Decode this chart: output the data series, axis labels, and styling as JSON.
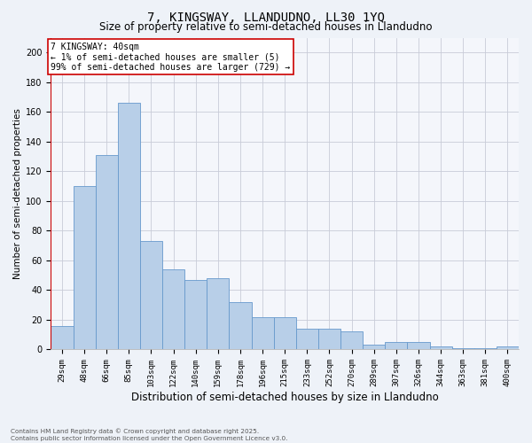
{
  "title": "7, KINGSWAY, LLANDUDNO, LL30 1YQ",
  "subtitle": "Size of property relative to semi-detached houses in Llandudno",
  "xlabel": "Distribution of semi-detached houses by size in Llandudno",
  "ylabel": "Number of semi-detached properties",
  "categories": [
    "29sqm",
    "48sqm",
    "66sqm",
    "85sqm",
    "103sqm",
    "122sqm",
    "140sqm",
    "159sqm",
    "178sqm",
    "196sqm",
    "215sqm",
    "233sqm",
    "252sqm",
    "270sqm",
    "289sqm",
    "307sqm",
    "326sqm",
    "344sqm",
    "363sqm",
    "381sqm",
    "400sqm"
  ],
  "values": [
    16,
    110,
    131,
    166,
    73,
    54,
    47,
    48,
    32,
    22,
    22,
    14,
    14,
    12,
    3,
    5,
    5,
    2,
    1,
    1,
    2
  ],
  "bar_color": "#b8cfe8",
  "bar_edge_color": "#6699cc",
  "annotation_text": "7 KINGSWAY: 40sqm\n← 1% of semi-detached houses are smaller (5)\n99% of semi-detached houses are larger (729) →",
  "annotation_box_color": "white",
  "annotation_box_edge_color": "#cc0000",
  "vline_color": "#cc0000",
  "ylim": [
    0,
    210
  ],
  "yticks": [
    0,
    20,
    40,
    60,
    80,
    100,
    120,
    140,
    160,
    180,
    200
  ],
  "footer_line1": "Contains HM Land Registry data © Crown copyright and database right 2025.",
  "footer_line2": "Contains public sector information licensed under the Open Government Licence v3.0.",
  "bg_color": "#eef2f8",
  "plot_bg_color": "#f4f6fb",
  "grid_color": "#c8ccd8"
}
